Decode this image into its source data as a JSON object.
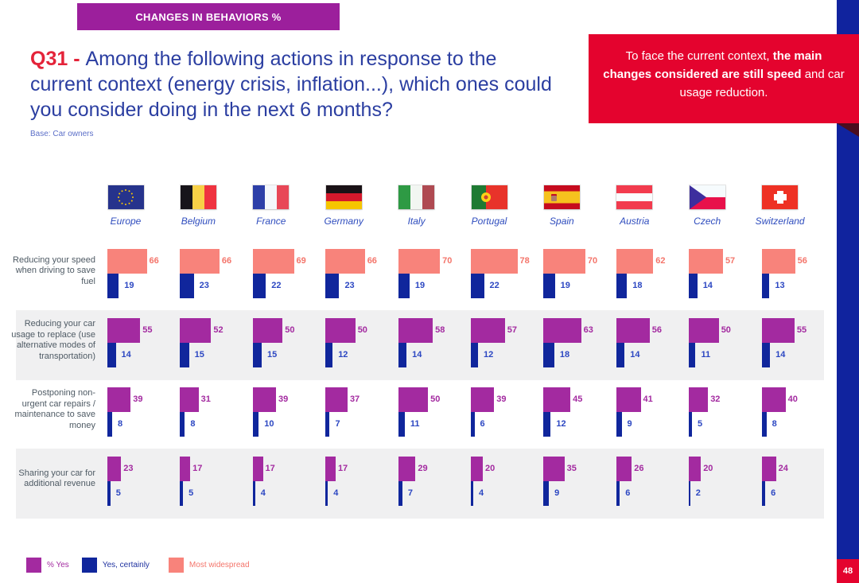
{
  "header": {
    "tag": "CHANGES IN BEHAVIORS %"
  },
  "title": {
    "q": "Q31 - ",
    "lines": [
      "Among the following actions in response to the",
      "current context (energy crisis, inflation...), which ones could",
      "you consider doing in the next 6 months?"
    ],
    "base": "Base: Car owners"
  },
  "callout": {
    "intro": "To face the current context, ",
    "bold": "the main changes considered are still speed",
    "rest": " and car usage reduction."
  },
  "page_number": "48",
  "colors": {
    "header_purple": "#9C1F9C",
    "bar_purple": "#A32AA0",
    "bar_blue": "#10269C",
    "bar_salmon": "#F8837B",
    "accent_red": "#E4032E",
    "sidebar_blue": "#10239E",
    "band_gray": "#F0F0F1",
    "certainly_value_text": "#2C47C2"
  },
  "legend": [
    {
      "label": "% Yes",
      "color": "#A32AA0",
      "text_color": "#A32AA0"
    },
    {
      "label": "Yes, certainly",
      "color": "#10269C",
      "text_color": "#2033A0"
    },
    {
      "label": "Most widespread",
      "color": "#F8837B",
      "text_color": "#F4756B"
    }
  ],
  "chart_data": {
    "type": "bar",
    "orientation": "horizontal",
    "countries": [
      "Europe",
      "Belgium",
      "France",
      "Germany",
      "Italy",
      "Portugal",
      "Spain",
      "Austria",
      "Czech",
      "Switzerland"
    ],
    "series_names": [
      "% Yes",
      "Yes, certainly"
    ],
    "certainly_color": "#10269C",
    "certainly_value_color": "#2C47C2",
    "xlim": [
      0,
      100
    ],
    "rows": [
      {
        "label": "Reducing your speed when driving to save fuel",
        "band": false,
        "primary_series": "Most widespread",
        "primary_color": "#F8837B",
        "value_color": "#F4756B",
        "yes": [
          66,
          66,
          69,
          66,
          70,
          78,
          70,
          62,
          57,
          56
        ],
        "certainly": [
          19,
          23,
          22,
          23,
          19,
          22,
          19,
          18,
          14,
          13
        ]
      },
      {
        "label": "Reducing your car usage to replace (use alternative modes of transportation)",
        "band": true,
        "primary_series": "% Yes",
        "primary_color": "#A32AA0",
        "value_color": "#A32AA0",
        "yes": [
          55,
          52,
          50,
          50,
          58,
          57,
          63,
          56,
          50,
          55
        ],
        "certainly": [
          14,
          15,
          15,
          12,
          14,
          12,
          18,
          14,
          11,
          14
        ]
      },
      {
        "label": "Postponing non-urgent car repairs / maintenance to save money",
        "band": false,
        "primary_series": "% Yes",
        "primary_color": "#A32AA0",
        "value_color": "#A32AA0",
        "yes": [
          39,
          31,
          39,
          37,
          50,
          39,
          45,
          41,
          32,
          40
        ],
        "certainly": [
          8,
          8,
          10,
          7,
          11,
          6,
          12,
          9,
          5,
          8
        ]
      },
      {
        "label": "Sharing your car for additional revenue",
        "band": true,
        "primary_series": "% Yes",
        "primary_color": "#A32AA0",
        "value_color": "#A32AA0",
        "yes": [
          23,
          17,
          17,
          17,
          29,
          20,
          35,
          26,
          20,
          24
        ],
        "certainly": [
          5,
          5,
          4,
          4,
          7,
          4,
          9,
          6,
          2,
          6
        ]
      }
    ]
  }
}
